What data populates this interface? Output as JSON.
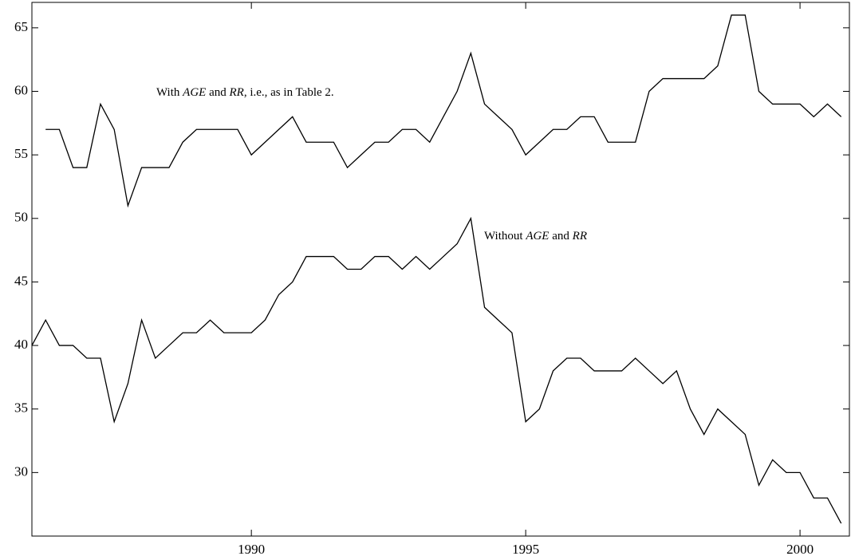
{
  "chart_data": {
    "type": "line",
    "x": [
      1986,
      1986.25,
      1986.5,
      1986.75,
      1987,
      1987.25,
      1987.5,
      1987.75,
      1988,
      1988.25,
      1988.5,
      1988.75,
      1989,
      1989.25,
      1989.5,
      1989.75,
      1990,
      1990.25,
      1990.5,
      1990.75,
      1991,
      1991.25,
      1991.5,
      1991.75,
      1992,
      1992.25,
      1992.5,
      1992.75,
      1993,
      1993.25,
      1993.5,
      1993.75,
      1994,
      1994.25,
      1994.5,
      1994.75,
      1995,
      1995.25,
      1995.5,
      1995.75,
      1996,
      1996.25,
      1996.5,
      1996.75,
      1997,
      1997.25,
      1997.5,
      1997.75,
      1998,
      1998.25,
      1998.5,
      1998.75,
      1999,
      1999.25,
      1999.5,
      1999.75,
      2000,
      2000.25,
      2000.5,
      2000.75
    ],
    "series": [
      {
        "color": "#000000",
        "values": [
          null,
          57,
          57,
          54,
          54,
          59,
          57,
          51,
          54,
          54,
          54,
          56,
          57,
          57,
          57,
          57,
          55,
          56,
          57,
          58,
          56,
          56,
          56,
          54,
          55,
          56,
          56,
          57,
          57,
          56,
          58,
          60,
          63,
          59,
          58,
          57,
          55,
          56,
          57,
          57,
          58,
          58,
          56,
          56,
          56,
          60,
          61,
          61,
          61,
          61,
          62,
          66,
          66,
          60,
          59,
          59,
          59,
          58,
          59,
          58
        ]
      },
      {
        "color": "#000000",
        "values": [
          40,
          42,
          40,
          40,
          39,
          39,
          34,
          37,
          42,
          39,
          40,
          41,
          41,
          42,
          41,
          41,
          41,
          42,
          44,
          45,
          47,
          47,
          47,
          46,
          46,
          47,
          47,
          46,
          47,
          46,
          47,
          48,
          50,
          43,
          42,
          41,
          34,
          35,
          38,
          39,
          39,
          38,
          38,
          38,
          39,
          38,
          37,
          38,
          35,
          33,
          35,
          34,
          33,
          29,
          31,
          30,
          30,
          28,
          28,
          26
        ]
      }
    ],
    "annotations": [
      [
        "With ",
        "AGE",
        " and ",
        "RR",
        ", i.e., as in Table 2."
      ],
      [
        "Without ",
        "AGE",
        " and ",
        "RR"
      ]
    ],
    "xlim": [
      1986,
      2000.9
    ],
    "xticks": [
      1990,
      1995,
      2000
    ],
    "ylim": [
      25,
      67
    ],
    "yticks": [
      30,
      35,
      40,
      45,
      50,
      55,
      60,
      65
    ]
  }
}
